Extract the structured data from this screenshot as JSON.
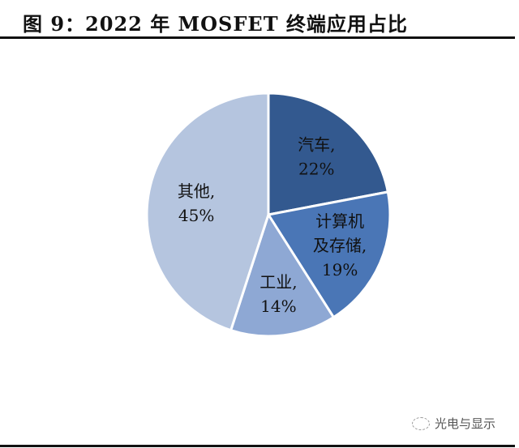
{
  "title": "图 9：2022 年 MOSFET 终端应用占比",
  "watermark": "光电与显示",
  "chart_data": {
    "type": "pie",
    "title": "图 9：2022 年 MOSFET 终端应用占比",
    "start": "12 o'clock",
    "direction": "clockwise",
    "categories": [
      "汽车",
      "计算机及存储",
      "工业",
      "其他"
    ],
    "values": [
      22,
      19,
      14,
      45
    ],
    "value_suffix": "%",
    "colors": [
      "#33598f",
      "#4a76b6",
      "#8ea8d4",
      "#b5c5df"
    ],
    "legend": "none"
  }
}
